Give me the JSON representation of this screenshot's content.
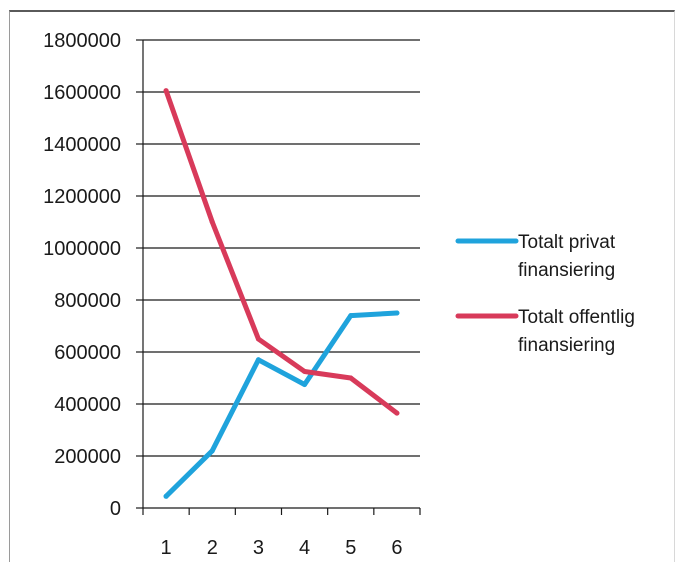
{
  "chart_data": {
    "type": "line",
    "categories": [
      "1",
      "2",
      "3",
      "4",
      "5",
      "6"
    ],
    "series": [
      {
        "name": "Totalt privat finansiering",
        "color": "#1fa3dc",
        "values": [
          45000,
          220000,
          570000,
          475000,
          740000,
          750000
        ]
      },
      {
        "name": "Totalt offentlig finansiering",
        "color": "#d83a5a",
        "values": [
          1605000,
          1100000,
          650000,
          525000,
          500000,
          365000
        ]
      }
    ],
    "ylim": [
      0,
      1800000
    ],
    "yticks": [
      0,
      200000,
      400000,
      600000,
      800000,
      1000000,
      1200000,
      1400000,
      1600000,
      1800000
    ],
    "ytick_labels": [
      "0",
      "200000",
      "400000",
      "600000",
      "800000",
      "1000000",
      "1200000",
      "1400000",
      "1600000",
      "1800000"
    ],
    "grid": true,
    "legend_position": "right",
    "legend": [
      {
        "lines": [
          "Totalt privat",
          "finansiering"
        ]
      },
      {
        "lines": [
          "Totalt offentlig",
          "finansiering"
        ]
      }
    ]
  }
}
